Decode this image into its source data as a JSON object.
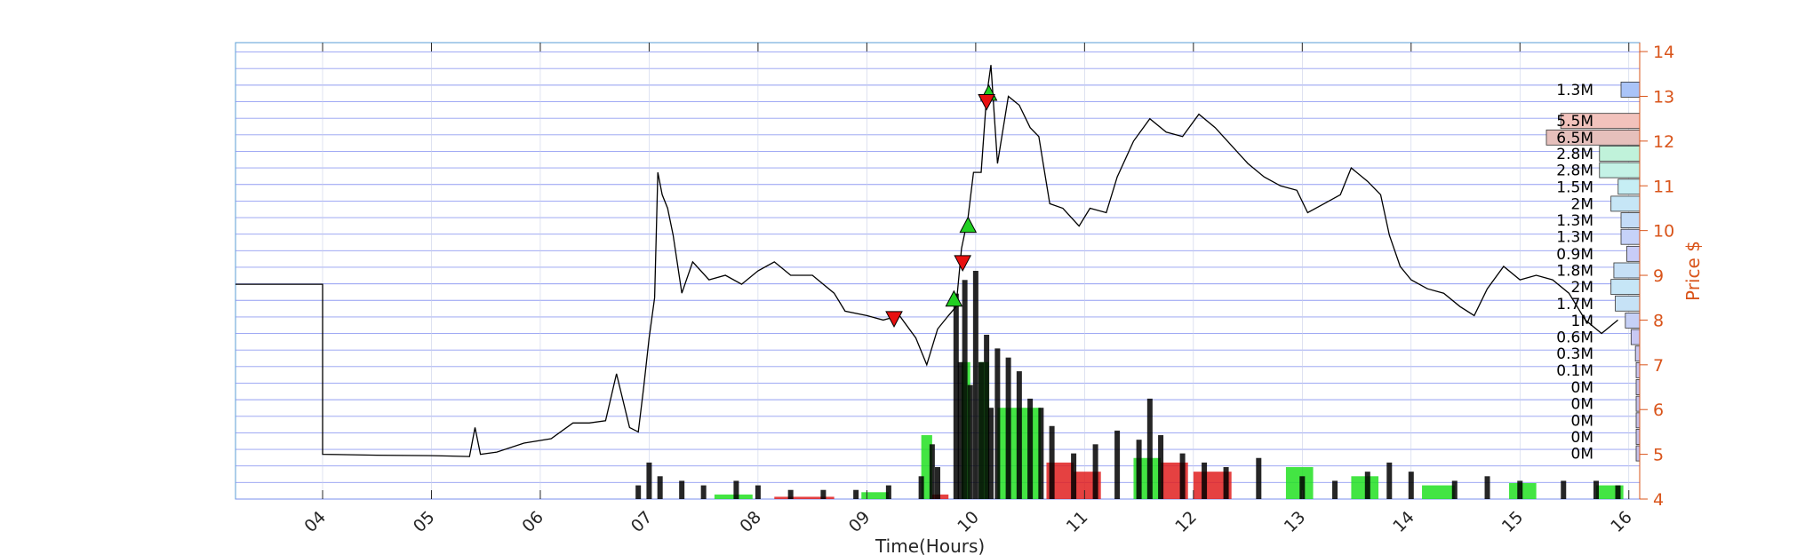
{
  "chart_data": {
    "type": "line",
    "title": "",
    "xlabel": "Time(Hours)",
    "ylabel": "Price $",
    "xlim": [
      3.2,
      16.1
    ],
    "ylim": [
      4,
      14.2
    ],
    "x_ticks": [
      "04",
      "05",
      "06",
      "07",
      "08",
      "09",
      "10",
      "11",
      "12",
      "13",
      "14",
      "15",
      "16"
    ],
    "y_ticks": [
      "4",
      "5",
      "6",
      "7",
      "8",
      "9",
      "10",
      "11",
      "12",
      "13",
      "14"
    ],
    "grid": true,
    "colors": {
      "price_line": "#000000",
      "grid": "#7f8cf0",
      "axis_right": "#d9541a",
      "volume_up": "#22e022",
      "volume_down": "#e02020",
      "buy_marker": "#22d022",
      "sell_marker": "#e81010"
    },
    "series": [
      {
        "points": [
          [
            3.2,
            8.8
          ],
          [
            4.0,
            8.8
          ],
          [
            4.0,
            5.0
          ],
          [
            4.5,
            4.98
          ],
          [
            5.0,
            4.97
          ],
          [
            5.35,
            4.95
          ],
          [
            5.4,
            5.6
          ],
          [
            5.45,
            5.0
          ],
          [
            5.6,
            5.05
          ],
          [
            5.85,
            5.25
          ],
          [
            6.1,
            5.35
          ],
          [
            6.3,
            5.7
          ],
          [
            6.45,
            5.7
          ],
          [
            6.6,
            5.75
          ],
          [
            6.7,
            6.8
          ],
          [
            6.82,
            5.6
          ],
          [
            6.9,
            5.5
          ],
          [
            6.95,
            6.5
          ],
          [
            7.0,
            7.6
          ],
          [
            7.05,
            8.5
          ],
          [
            7.08,
            11.3
          ],
          [
            7.12,
            10.8
          ],
          [
            7.17,
            10.5
          ],
          [
            7.22,
            9.9
          ],
          [
            7.3,
            8.6
          ],
          [
            7.4,
            9.3
          ],
          [
            7.55,
            8.9
          ],
          [
            7.7,
            9.0
          ],
          [
            7.85,
            8.8
          ],
          [
            8.0,
            9.1
          ],
          [
            8.15,
            9.3
          ],
          [
            8.3,
            9.0
          ],
          [
            8.5,
            9.0
          ],
          [
            8.7,
            8.6
          ],
          [
            8.8,
            8.2
          ],
          [
            9.0,
            8.1
          ],
          [
            9.15,
            8.0
          ],
          [
            9.3,
            8.1
          ],
          [
            9.45,
            7.6
          ],
          [
            9.55,
            7.0
          ],
          [
            9.65,
            7.8
          ],
          [
            9.75,
            8.1
          ],
          [
            9.82,
            8.3
          ],
          [
            9.87,
            9.6
          ],
          [
            9.93,
            10.3
          ],
          [
            9.98,
            11.3
          ],
          [
            10.05,
            11.3
          ],
          [
            10.1,
            13.0
          ],
          [
            10.14,
            13.7
          ],
          [
            10.2,
            11.5
          ],
          [
            10.3,
            13.0
          ],
          [
            10.4,
            12.8
          ],
          [
            10.5,
            12.3
          ],
          [
            10.58,
            12.1
          ],
          [
            10.62,
            11.5
          ],
          [
            10.68,
            10.6
          ],
          [
            10.8,
            10.5
          ],
          [
            10.95,
            10.1
          ],
          [
            11.05,
            10.5
          ],
          [
            11.2,
            10.4
          ],
          [
            11.3,
            11.2
          ],
          [
            11.45,
            12.0
          ],
          [
            11.6,
            12.5
          ],
          [
            11.75,
            12.2
          ],
          [
            11.9,
            12.1
          ],
          [
            12.05,
            12.6
          ],
          [
            12.2,
            12.3
          ],
          [
            12.35,
            11.9
          ],
          [
            12.5,
            11.5
          ],
          [
            12.65,
            11.2
          ],
          [
            12.8,
            11.0
          ],
          [
            12.95,
            10.9
          ],
          [
            13.05,
            10.4
          ],
          [
            13.2,
            10.6
          ],
          [
            13.35,
            10.8
          ],
          [
            13.45,
            11.4
          ],
          [
            13.6,
            11.1
          ],
          [
            13.72,
            10.8
          ],
          [
            13.8,
            9.9
          ],
          [
            13.9,
            9.2
          ],
          [
            14.0,
            8.9
          ],
          [
            14.15,
            8.7
          ],
          [
            14.3,
            8.6
          ],
          [
            14.45,
            8.3
          ],
          [
            14.58,
            8.1
          ],
          [
            14.7,
            8.7
          ],
          [
            14.85,
            9.2
          ],
          [
            15.0,
            8.9
          ],
          [
            15.15,
            9.0
          ],
          [
            15.3,
            8.9
          ],
          [
            15.45,
            8.6
          ],
          [
            15.6,
            8.0
          ],
          [
            15.75,
            7.7
          ],
          [
            15.9,
            8.0
          ]
        ]
      }
    ],
    "volume": {
      "bars": [
        [
          6.9,
          0.03
        ],
        [
          7.0,
          0.08
        ],
        [
          7.1,
          0.05
        ],
        [
          7.3,
          0.04
        ],
        [
          7.5,
          0.03
        ],
        [
          7.8,
          0.04
        ],
        [
          8.0,
          0.03
        ],
        [
          8.3,
          0.02
        ],
        [
          8.6,
          0.02
        ],
        [
          8.9,
          0.02
        ],
        [
          9.2,
          0.03
        ],
        [
          9.5,
          0.05
        ],
        [
          9.6,
          0.12
        ],
        [
          9.65,
          0.07
        ],
        [
          9.82,
          0.45
        ],
        [
          9.86,
          0.3
        ],
        [
          9.9,
          0.48
        ],
        [
          9.95,
          0.25
        ],
        [
          10.0,
          0.5
        ],
        [
          10.05,
          0.3
        ],
        [
          10.1,
          0.36
        ],
        [
          10.14,
          0.2
        ],
        [
          10.2,
          0.33
        ],
        [
          10.3,
          0.31
        ],
        [
          10.4,
          0.28
        ],
        [
          10.5,
          0.22
        ],
        [
          10.6,
          0.2
        ],
        [
          10.7,
          0.16
        ],
        [
          10.9,
          0.1
        ],
        [
          11.1,
          0.12
        ],
        [
          11.3,
          0.15
        ],
        [
          11.5,
          0.13
        ],
        [
          11.6,
          0.22
        ],
        [
          11.7,
          0.14
        ],
        [
          11.9,
          0.1
        ],
        [
          12.1,
          0.08
        ],
        [
          12.3,
          0.07
        ],
        [
          12.6,
          0.09
        ],
        [
          13.0,
          0.05
        ],
        [
          13.3,
          0.04
        ],
        [
          13.6,
          0.06
        ],
        [
          13.8,
          0.08
        ],
        [
          14.0,
          0.06
        ],
        [
          14.4,
          0.04
        ],
        [
          14.7,
          0.05
        ],
        [
          15.0,
          0.04
        ],
        [
          15.4,
          0.04
        ],
        [
          15.7,
          0.04
        ],
        [
          15.9,
          0.03
        ]
      ],
      "up_blocks": [
        [
          7.6,
          7.95,
          0.01
        ],
        [
          8.95,
          9.2,
          0.015
        ],
        [
          9.5,
          9.6,
          0.14
        ],
        [
          9.87,
          9.95,
          0.3
        ],
        [
          10.03,
          10.12,
          0.3
        ],
        [
          10.2,
          10.6,
          0.2
        ],
        [
          11.45,
          11.7,
          0.09
        ],
        [
          12.85,
          13.1,
          0.07
        ],
        [
          13.45,
          13.7,
          0.05
        ],
        [
          14.1,
          14.4,
          0.03
        ],
        [
          14.9,
          15.15,
          0.035
        ],
        [
          15.7,
          15.95,
          0.03
        ]
      ],
      "down_blocks": [
        [
          8.15,
          8.7,
          0.005
        ],
        [
          9.6,
          9.75,
          0.01
        ],
        [
          10.65,
          10.9,
          0.08
        ],
        [
          10.9,
          11.15,
          0.06
        ],
        [
          11.7,
          11.95,
          0.08
        ],
        [
          12.0,
          12.35,
          0.06
        ]
      ]
    },
    "markers": {
      "buy": [
        [
          9.8,
          8.45
        ],
        [
          9.93,
          10.1
        ],
        [
          10.12,
          13.05
        ]
      ],
      "sell": [
        [
          9.25,
          8.05
        ],
        [
          9.88,
          9.3
        ],
        [
          10.1,
          12.9
        ]
      ]
    },
    "volume_profile": [
      {
        "label": "1.3M",
        "price": 13.15,
        "value": 1.3,
        "color": "#aac4f8"
      },
      {
        "label": "5.5M",
        "price": 12.45,
        "value": 5.5,
        "color": "#f2c2bc"
      },
      {
        "label": "6.5M",
        "price": 12.08,
        "value": 6.5,
        "color": "#e6c0bc"
      },
      {
        "label": "2.8M",
        "price": 11.72,
        "value": 2.8,
        "color": "#c0f2da"
      },
      {
        "label": "2.8M",
        "price": 11.35,
        "value": 2.8,
        "color": "#c4f2e6"
      },
      {
        "label": "1.5M",
        "price": 10.98,
        "value": 1.5,
        "color": "#c6eef4"
      },
      {
        "label": "2M",
        "price": 10.6,
        "value": 2.0,
        "color": "#c6e6f6"
      },
      {
        "label": "1.3M",
        "price": 10.23,
        "value": 1.3,
        "color": "#c4dcf8"
      },
      {
        "label": "1.3M",
        "price": 9.86,
        "value": 1.3,
        "color": "#c6d2f8"
      },
      {
        "label": "0.9M",
        "price": 9.48,
        "value": 0.9,
        "color": "#c8ccf8"
      },
      {
        "label": "1.8M",
        "price": 9.11,
        "value": 1.8,
        "color": "#c6e0f6"
      },
      {
        "label": "2M",
        "price": 8.74,
        "value": 2.0,
        "color": "#c6e6f6"
      },
      {
        "label": "1.7M",
        "price": 8.37,
        "value": 1.7,
        "color": "#c6e2f6"
      },
      {
        "label": "1M",
        "price": 7.99,
        "value": 1.0,
        "color": "#c6d0f6"
      },
      {
        "label": "0.6M",
        "price": 7.62,
        "value": 0.6,
        "color": "#c8c8f4"
      },
      {
        "label": "0.3M",
        "price": 7.25,
        "value": 0.3,
        "color": "#c8c6f0"
      },
      {
        "label": "0.1M",
        "price": 6.88,
        "value": 0.1,
        "color": "#c8c4ee"
      },
      {
        "label": "0M",
        "price": 6.5,
        "value": 0.0,
        "color": "#c4c0e8"
      },
      {
        "label": "0M",
        "price": 6.13,
        "value": 0.0,
        "color": "#c4c0e8"
      },
      {
        "label": "0M",
        "price": 5.76,
        "value": 0.0,
        "color": "#c4c0e8"
      },
      {
        "label": "0M",
        "price": 5.39,
        "value": 0.0,
        "color": "#c4c0e8"
      },
      {
        "label": "0M",
        "price": 5.02,
        "value": 0.0,
        "color": "#c4c0e8"
      }
    ]
  }
}
